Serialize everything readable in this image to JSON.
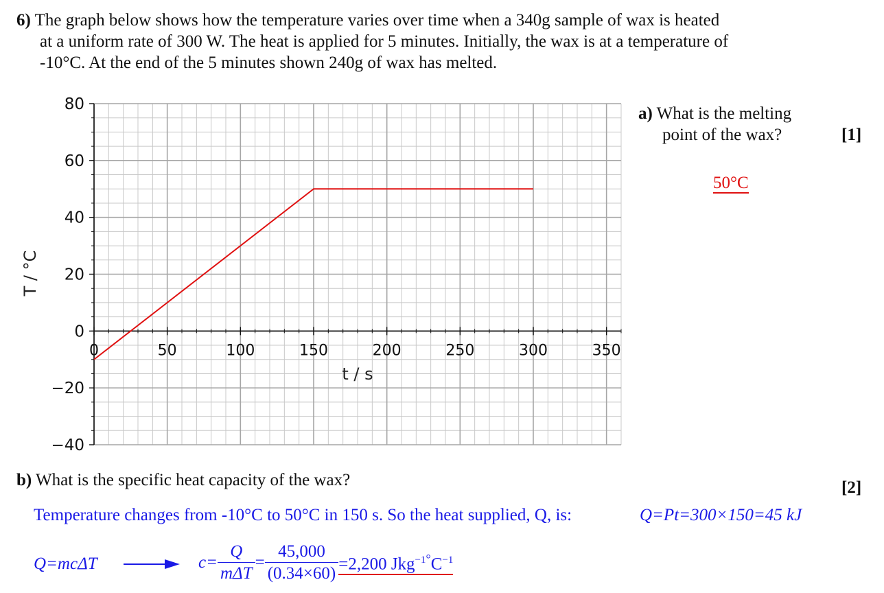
{
  "question": {
    "number": "6)",
    "line1": "The graph below shows how the temperature varies over time when a 340g sample of wax is heated",
    "line2": "at a uniform rate of 300 W. The heat is applied for 5 minutes. Initially, the wax is at a temperature of",
    "line3": "-10°C. At the end of the 5 minutes shown 240g of wax has melted."
  },
  "chart_data": {
    "type": "line",
    "xlabel": "t / s",
    "ylabel": "T / °C",
    "xlim": [
      0,
      360
    ],
    "ylim": [
      -40,
      80
    ],
    "x_ticks": [
      "0",
      "50",
      "100",
      "150",
      "200",
      "250",
      "300",
      "350"
    ],
    "y_ticks": [
      "80",
      "60",
      "40",
      "20",
      "0",
      "−20",
      "−40"
    ],
    "x_tick_values": [
      0,
      50,
      100,
      150,
      200,
      250,
      300,
      350
    ],
    "y_tick_values": [
      80,
      60,
      40,
      20,
      0,
      -20,
      -40
    ],
    "grid": true,
    "series": [
      {
        "x": [
          0,
          150,
          300
        ],
        "y": [
          -10,
          50,
          50
        ],
        "color": "#e01010"
      }
    ]
  },
  "part_a": {
    "label": "a)",
    "line1": "What is the melting",
    "line2": "point of the wax?",
    "marks": "[1]",
    "answer": "50°C"
  },
  "part_b": {
    "label": "b)",
    "text": "What is the specific heat capacity of the wax?",
    "marks": "[2]",
    "working_line": "Temperature changes from -10°C to 50°C in 150 s. So the heat supplied, Q, is:",
    "eq1": "Q=Pt=300×150=45 kJ",
    "eq2_left": "Q=mcΔT",
    "c_eq": "c=",
    "frac1_num": "Q",
    "frac1_den": "mΔT",
    "equals": "=",
    "frac2_num": "45,000",
    "frac2_den": "(0.34×60)",
    "result": "=2,200 Jkg",
    "sup1": "−1",
    "deg": "°",
    "unit_c": "C",
    "sup2": "−1"
  }
}
